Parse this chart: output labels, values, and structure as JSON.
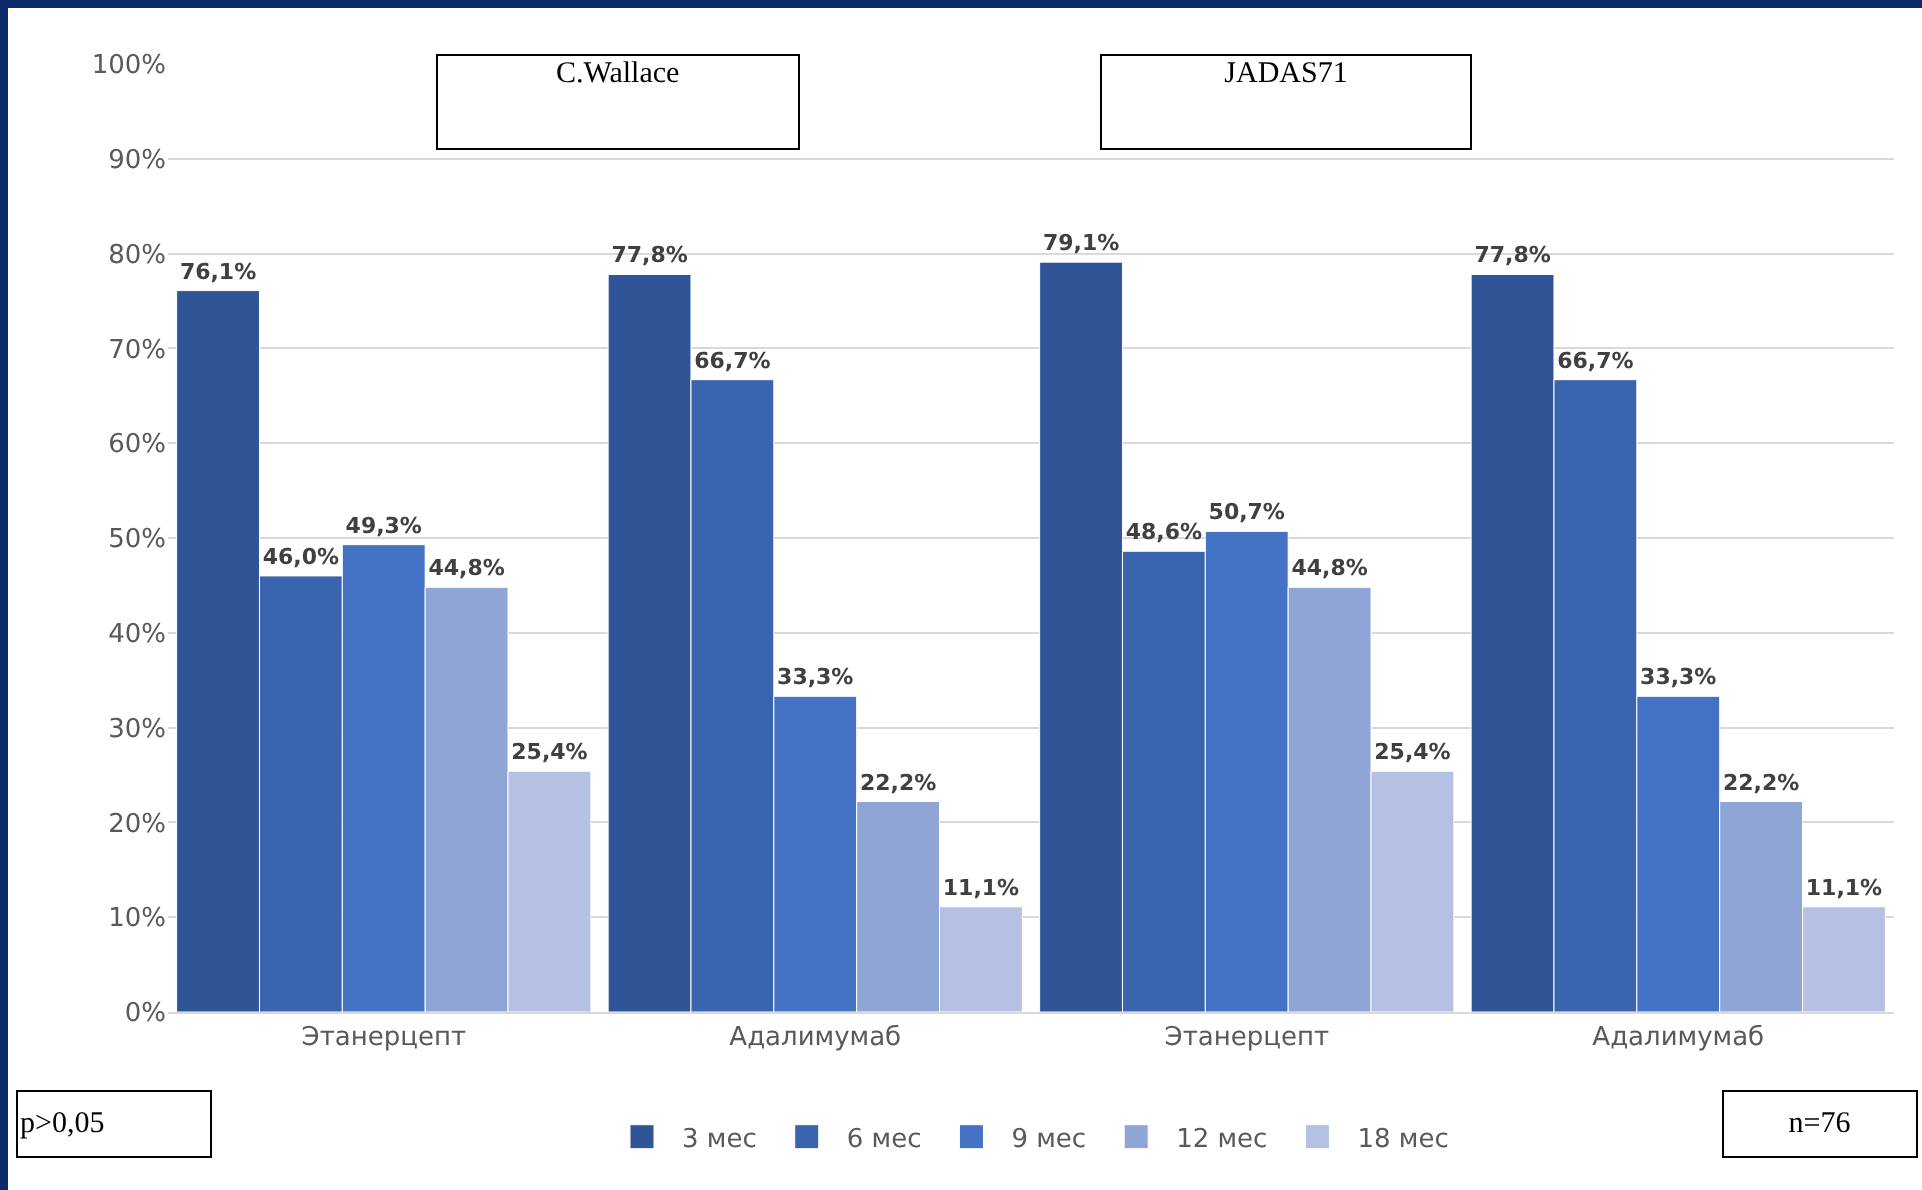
{
  "chart_data": {
    "type": "bar",
    "categories": [
      "Этанерцепт",
      "Адалимумаб",
      "Этанерцепт",
      "Адалимумаб"
    ],
    "series": [
      {
        "name": "3 мес",
        "color": "#2f5597",
        "values": [
          76.1,
          77.8,
          79.1,
          77.8
        ],
        "value_labels": [
          "76,1%",
          "77,8%",
          "79,1%",
          "77,8%"
        ]
      },
      {
        "name": "6 мес",
        "color": "#3a64ad",
        "values": [
          46.0,
          66.7,
          48.6,
          66.7
        ],
        "value_labels": [
          "46,0%",
          "66,7%",
          "48,6%",
          "66,7%"
        ]
      },
      {
        "name": "9 мес",
        "color": "#4472c4",
        "values": [
          49.3,
          33.3,
          50.7,
          33.3
        ],
        "value_labels": [
          "49,3%",
          "33,3%",
          "50,7%",
          "33,3%"
        ]
      },
      {
        "name": "12 мес",
        "color": "#8fa5d6",
        "values": [
          44.8,
          22.2,
          44.8,
          22.2
        ],
        "value_labels": [
          "44,8%",
          "22,2%",
          "44,8%",
          "22,2%"
        ]
      },
      {
        "name": "18 мес",
        "color": "#b4c1e3",
        "values": [
          25.4,
          11.1,
          25.4,
          11.1
        ],
        "value_labels": [
          "25,4%",
          "11,1%",
          "25,4%",
          "11,1%"
        ]
      }
    ],
    "ylim": [
      0,
      100
    ],
    "yticks": [
      {
        "value": 0,
        "label": "0%"
      },
      {
        "value": 10,
        "label": "10%"
      },
      {
        "value": 20,
        "label": "20%"
      },
      {
        "value": 30,
        "label": "30%"
      },
      {
        "value": 40,
        "label": "40%"
      },
      {
        "value": 50,
        "label": "50%"
      },
      {
        "value": 60,
        "label": "60%"
      },
      {
        "value": 70,
        "label": "70%"
      },
      {
        "value": 80,
        "label": "80%"
      },
      {
        "value": 90,
        "label": "90%"
      },
      {
        "value": 100,
        "label": "100%"
      }
    ],
    "grid": "y",
    "legend": "bottom",
    "annotations": [
      "C.Wallace",
      "JADAS71",
      "p>0,05",
      "n=76"
    ]
  }
}
